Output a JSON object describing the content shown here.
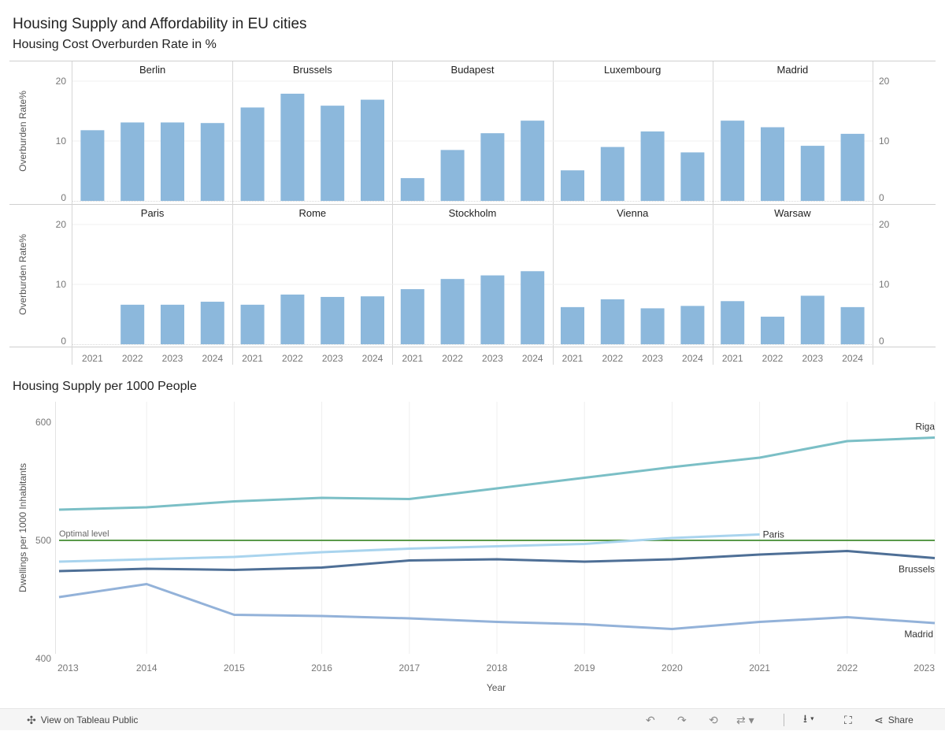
{
  "header": {
    "title": "Housing Supply and Affordability in EU cities",
    "subtitle": "Housing Cost Overburden Rate in %"
  },
  "bottom_section": {
    "title": "Housing Supply per 1000 People"
  },
  "chart_data": [
    {
      "type": "bar",
      "title": "Housing Cost Overburden Rate in %",
      "ylabel": "Overburden Rate%",
      "ylim": [
        0,
        22
      ],
      "yticks": [
        "0",
        "10",
        "20"
      ],
      "categories": [
        "2021",
        "2022",
        "2023",
        "2024"
      ],
      "panels": [
        {
          "name": "Berlin",
          "values": [
            11.8,
            13.1,
            13.1,
            13.0
          ]
        },
        {
          "name": "Brussels",
          "values": [
            15.6,
            17.9,
            15.9,
            16.9
          ]
        },
        {
          "name": "Budapest",
          "values": [
            3.8,
            8.5,
            11.3,
            13.4
          ]
        },
        {
          "name": "Luxembourg",
          "values": [
            5.1,
            9.0,
            11.6,
            8.1
          ]
        },
        {
          "name": "Madrid",
          "values": [
            13.4,
            12.3,
            9.2,
            11.2
          ]
        },
        {
          "name": "Paris",
          "values": [
            null,
            6.6,
            6.6,
            7.1
          ]
        },
        {
          "name": "Rome",
          "values": [
            6.6,
            8.3,
            7.9,
            8.0
          ]
        },
        {
          "name": "Stockholm",
          "values": [
            9.2,
            10.9,
            11.5,
            12.2
          ]
        },
        {
          "name": "Vienna",
          "values": [
            6.2,
            7.5,
            6.0,
            6.4
          ]
        },
        {
          "name": "Warsaw",
          "values": [
            7.2,
            4.6,
            8.1,
            6.2
          ]
        }
      ],
      "bar_color": "#8cb8dc"
    },
    {
      "type": "line",
      "title": "Housing Supply per 1000 People",
      "xlabel": "Year",
      "ylabel": "Dwellings per 1000 Inhabitants",
      "x": [
        "2013",
        "2014",
        "2015",
        "2016",
        "2017",
        "2018",
        "2019",
        "2020",
        "2021",
        "2022",
        "2023"
      ],
      "ylim": [
        394,
        618
      ],
      "yticks": [
        "400",
        "500",
        "600"
      ],
      "reference_line": {
        "label": "Optimal level",
        "value": 500,
        "color": "#5a9a4a"
      },
      "series": [
        {
          "name": "Riga",
          "color": "#7bbfc6",
          "values": [
            526,
            528,
            533,
            536,
            535,
            544,
            553,
            562,
            570,
            584,
            587
          ]
        },
        {
          "name": "Paris",
          "color": "#a9d4ee",
          "values": [
            482,
            484,
            486,
            490,
            493,
            495,
            497,
            502,
            505,
            null,
            null
          ]
        },
        {
          "name": "Brussels",
          "color": "#4e6f96",
          "values": [
            474,
            476,
            475,
            477,
            483,
            484,
            482,
            484,
            488,
            491,
            485
          ]
        },
        {
          "name": "Madrid",
          "color": "#93b2d9",
          "values": [
            452,
            463,
            437,
            436,
            434,
            431,
            429,
            425,
            431,
            435,
            430
          ]
        }
      ]
    }
  ],
  "toolbar": {
    "view_label": "View on Tableau Public",
    "share_label": "Share",
    "icons": [
      "tableau-icon",
      "undo-icon",
      "redo-icon",
      "revert-icon",
      "pause-icon",
      "download-icon",
      "fullscreen-icon",
      "share-icon"
    ]
  }
}
